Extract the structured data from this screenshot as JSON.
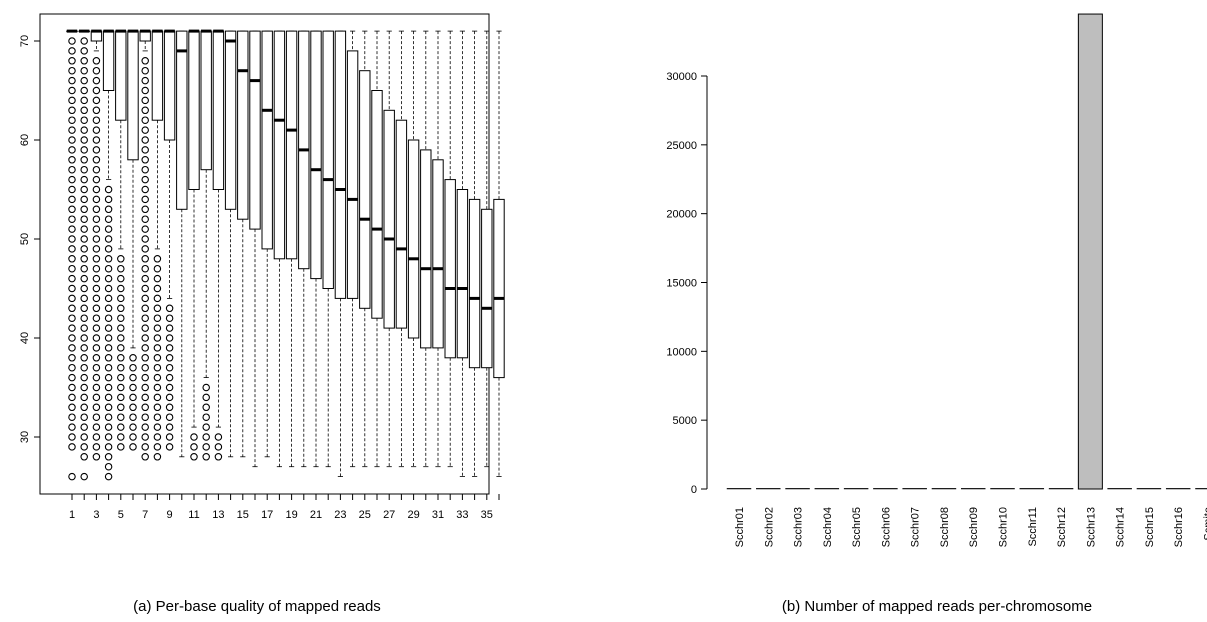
{
  "captions": {
    "a": "(a) Per-base quality of mapped reads",
    "b": "(b) Number of mapped reads per-chromosome"
  },
  "chart_data": [
    {
      "type": "boxplot",
      "title": "",
      "xlabel": "",
      "ylabel": "",
      "ylim": [
        24,
        72
      ],
      "y_ticks": [
        30,
        40,
        50,
        60,
        70
      ],
      "x_tick_labels": [
        "1",
        "3",
        "5",
        "7",
        "9",
        "11",
        "13",
        "15",
        "17",
        "19",
        "21",
        "23",
        "25",
        "27",
        "29",
        "31",
        "33",
        "35"
      ],
      "categories": [
        1,
        2,
        3,
        4,
        5,
        6,
        7,
        8,
        9,
        10,
        11,
        12,
        13,
        14,
        15,
        16,
        17,
        18,
        19,
        20,
        21,
        22,
        23,
        24,
        25,
        26,
        27,
        28,
        29,
        30,
        31,
        32,
        33,
        34,
        35,
        36
      ],
      "boxes": [
        {
          "pos": 1,
          "whislo": 71,
          "q1": 71,
          "med": 71,
          "q3": 71,
          "whishi": 71,
          "outliers_range": [
            29,
            70
          ],
          "outliers_extra": [
            26
          ]
        },
        {
          "pos": 2,
          "whislo": 71,
          "q1": 71,
          "med": 71,
          "q3": 71,
          "whishi": 71,
          "outliers_range": [
            28,
            70
          ],
          "outliers_extra": [
            26
          ]
        },
        {
          "pos": 3,
          "whislo": 69,
          "q1": 70,
          "med": 71,
          "q3": 71,
          "whishi": 71,
          "outliers_range": [
            28,
            68
          ]
        },
        {
          "pos": 4,
          "whislo": 56,
          "q1": 65,
          "med": 71,
          "q3": 71,
          "whishi": 71,
          "outliers_range": [
            28,
            55
          ],
          "outliers_extra": [
            27,
            26
          ]
        },
        {
          "pos": 5,
          "whislo": 49,
          "q1": 62,
          "med": 71,
          "q3": 71,
          "whishi": 71,
          "outliers_range": [
            29,
            48
          ]
        },
        {
          "pos": 6,
          "whislo": 39,
          "q1": 58,
          "med": 71,
          "q3": 71,
          "whishi": 71,
          "outliers_range": [
            29,
            38
          ]
        },
        {
          "pos": 7,
          "whislo": 69,
          "q1": 70,
          "med": 71,
          "q3": 71,
          "whishi": 71,
          "outliers_range": [
            28,
            68
          ]
        },
        {
          "pos": 8,
          "whislo": 49,
          "q1": 62,
          "med": 71,
          "q3": 71,
          "whishi": 71,
          "outliers_range": [
            28,
            48
          ]
        },
        {
          "pos": 9,
          "whislo": 44,
          "q1": 60,
          "med": 71,
          "q3": 71,
          "whishi": 71,
          "outliers_range": [
            29,
            43
          ]
        },
        {
          "pos": 10,
          "whislo": 28,
          "q1": 53,
          "med": 69,
          "q3": 71,
          "whishi": 71
        },
        {
          "pos": 11,
          "whislo": 31,
          "q1": 55,
          "med": 71,
          "q3": 71,
          "whishi": 71,
          "outliers_range": [
            28,
            30
          ]
        },
        {
          "pos": 12,
          "whislo": 36,
          "q1": 57,
          "med": 71,
          "q3": 71,
          "whishi": 71,
          "outliers_range": [
            28,
            35
          ]
        },
        {
          "pos": 13,
          "whislo": 31,
          "q1": 55,
          "med": 71,
          "q3": 71,
          "whishi": 71,
          "outliers_range": [
            28,
            30
          ]
        },
        {
          "pos": 14,
          "whislo": 28,
          "q1": 53,
          "med": 70,
          "q3": 71,
          "whishi": 71
        },
        {
          "pos": 15,
          "whislo": 28,
          "q1": 52,
          "med": 67,
          "q3": 71,
          "whishi": 71
        },
        {
          "pos": 16,
          "whislo": 27,
          "q1": 51,
          "med": 66,
          "q3": 71,
          "whishi": 71
        },
        {
          "pos": 17,
          "whislo": 28,
          "q1": 49,
          "med": 63,
          "q3": 71,
          "whishi": 71
        },
        {
          "pos": 18,
          "whislo": 27,
          "q1": 48,
          "med": 62,
          "q3": 71,
          "whishi": 71
        },
        {
          "pos": 19,
          "whislo": 27,
          "q1": 48,
          "med": 61,
          "q3": 71,
          "whishi": 71
        },
        {
          "pos": 20,
          "whislo": 27,
          "q1": 47,
          "med": 59,
          "q3": 71,
          "whishi": 71
        },
        {
          "pos": 21,
          "whislo": 27,
          "q1": 46,
          "med": 57,
          "q3": 71,
          "whishi": 71
        },
        {
          "pos": 22,
          "whislo": 27,
          "q1": 45,
          "med": 56,
          "q3": 71,
          "whishi": 71
        },
        {
          "pos": 23,
          "whislo": 26,
          "q1": 44,
          "med": 55,
          "q3": 71,
          "whishi": 71
        },
        {
          "pos": 24,
          "whislo": 27,
          "q1": 44,
          "med": 54,
          "q3": 69,
          "whishi": 71
        },
        {
          "pos": 25,
          "whislo": 27,
          "q1": 43,
          "med": 52,
          "q3": 67,
          "whishi": 71
        },
        {
          "pos": 26,
          "whislo": 27,
          "q1": 42,
          "med": 51,
          "q3": 65,
          "whishi": 71
        },
        {
          "pos": 27,
          "whislo": 27,
          "q1": 41,
          "med": 50,
          "q3": 63,
          "whishi": 71
        },
        {
          "pos": 28,
          "whislo": 27,
          "q1": 41,
          "med": 49,
          "q3": 62,
          "whishi": 71
        },
        {
          "pos": 29,
          "whislo": 27,
          "q1": 40,
          "med": 48,
          "q3": 60,
          "whishi": 71
        },
        {
          "pos": 30,
          "whislo": 27,
          "q1": 39,
          "med": 47,
          "q3": 59,
          "whishi": 71
        },
        {
          "pos": 31,
          "whislo": 27,
          "q1": 39,
          "med": 47,
          "q3": 58,
          "whishi": 71
        },
        {
          "pos": 32,
          "whislo": 27,
          "q1": 38,
          "med": 45,
          "q3": 56,
          "whishi": 71
        },
        {
          "pos": 33,
          "whislo": 26,
          "q1": 38,
          "med": 45,
          "q3": 55,
          "whishi": 71
        },
        {
          "pos": 34,
          "whislo": 26,
          "q1": 37,
          "med": 44,
          "q3": 54,
          "whishi": 71
        },
        {
          "pos": 35,
          "whislo": 27,
          "q1": 37,
          "med": 43,
          "q3": 53,
          "whishi": 71
        },
        {
          "pos": 36,
          "whislo": 26,
          "q1": 36,
          "med": 44,
          "q3": 54,
          "whishi": 71
        }
      ]
    },
    {
      "type": "bar",
      "title": "",
      "xlabel": "",
      "ylabel": "",
      "ylim": [
        0,
        35000
      ],
      "y_ticks": [
        0,
        5000,
        10000,
        15000,
        20000,
        25000,
        30000
      ],
      "categories": [
        "Scchr01",
        "Scchr02",
        "Scchr03",
        "Scchr04",
        "Scchr05",
        "Scchr06",
        "Scchr07",
        "Scchr08",
        "Scchr09",
        "Scchr10",
        "Scchr11",
        "Scchr12",
        "Scchr13",
        "Scchr14",
        "Scchr15",
        "Scchr16",
        "Scmito"
      ],
      "values": [
        0,
        0,
        0,
        0,
        0,
        0,
        0,
        0,
        0,
        0,
        0,
        0,
        34500,
        0,
        0,
        0,
        0
      ],
      "bar_color": "#bebebe"
    }
  ]
}
